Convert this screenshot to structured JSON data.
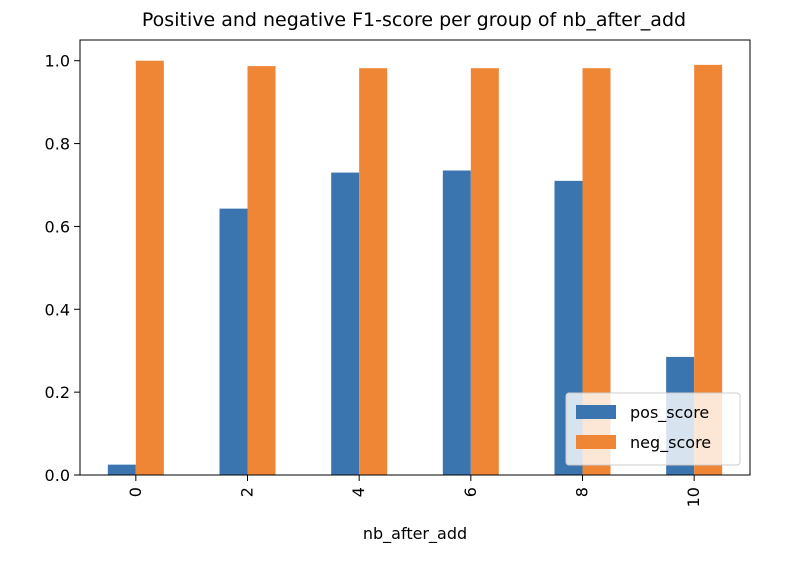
{
  "chart_data": {
    "type": "bar",
    "title": "Positive and negative F1-score per group of nb_after_add",
    "xlabel": "nb_after_add",
    "ylabel": "",
    "categories": [
      "0",
      "2",
      "4",
      "6",
      "8",
      "10"
    ],
    "ylim": [
      0,
      1.05
    ],
    "yticks": [
      "0.0",
      "0.2",
      "0.4",
      "0.6",
      "0.8",
      "1.0"
    ],
    "series": [
      {
        "name": "pos_score",
        "color": "#3b75af",
        "values": [
          0.025,
          0.643,
          0.73,
          0.735,
          0.71,
          0.285
        ]
      },
      {
        "name": "neg_score",
        "color": "#ef8636",
        "values": [
          1.0,
          0.987,
          0.982,
          0.982,
          0.982,
          0.99
        ]
      }
    ],
    "legend": "lower-right",
    "grid": false
  }
}
